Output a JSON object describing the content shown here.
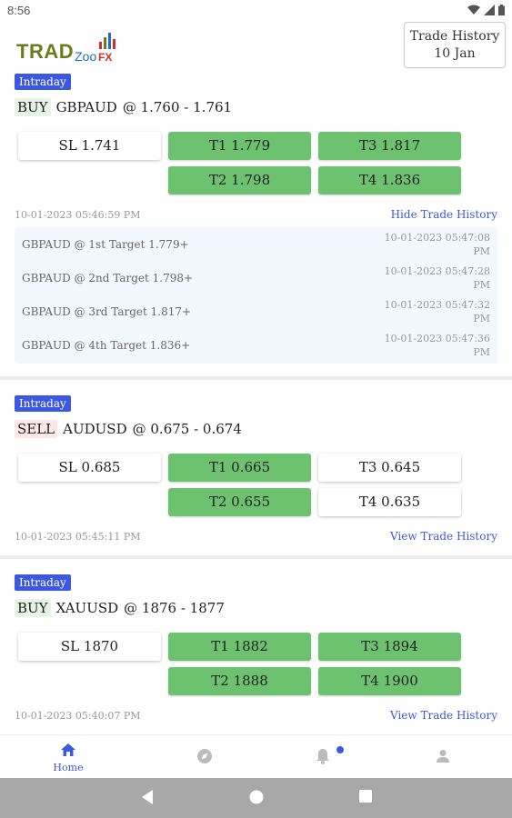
{
  "status": {
    "time": "8:56"
  },
  "header": {
    "logo": {
      "trad": "TRAD",
      "zoo": "Zoo",
      "fx": "FX"
    },
    "trade_history_line1": "Trade History",
    "trade_history_line2": "10 Jan"
  },
  "signals": [
    {
      "badge": "Intraday",
      "side": "BUY",
      "pair": "GBPAUD",
      "range": "@ 1.760 - 1.761",
      "sl": "SL  1.741",
      "t1": "T1  1.779",
      "t2": "T2  1.798",
      "t3": "T3  1.817",
      "t4": "T4  1.836",
      "timestamp": "10-01-2023 05:46:59 PM",
      "link": "Hide Trade History",
      "history": [
        {
          "text": "GBPAUD @ 1st Target 1.779+",
          "date": "10-01-2023 05:47:08",
          "time": "PM"
        },
        {
          "text": "GBPAUD @ 2nd Target 1.798+",
          "date": "10-01-2023 05:47:28",
          "time": "PM"
        },
        {
          "text": "GBPAUD @ 3rd Target 1.817+",
          "date": "10-01-2023 05:47:32",
          "time": "PM"
        },
        {
          "text": "GBPAUD @ 4th Target 1.836+",
          "date": "10-01-2023 05:47:36",
          "time": "PM"
        }
      ]
    },
    {
      "badge": "Intraday",
      "side": "SELL",
      "pair": "AUDUSD",
      "range": "@ 0.675 - 0.674",
      "sl": "SL  0.685",
      "t1": "T1  0.665",
      "t2": "T2  0.655",
      "t3": "T3  0.645",
      "t4": "T4  0.635",
      "timestamp": "10-01-2023 05:45:11 PM",
      "link": "View Trade History"
    },
    {
      "badge": "Intraday",
      "side": "BUY",
      "pair": "XAUUSD",
      "range": "@ 1876 - 1877",
      "sl": "SL  1870",
      "t1": "T1  1882",
      "t2": "T2  1888",
      "t3": "T3  1894",
      "t4": "T4  1900",
      "timestamp": "10-01-2023 05:40:07 PM",
      "link": "View Trade History"
    }
  ],
  "bottom_nav": {
    "home": "Home"
  },
  "colors": {
    "accent": "#3d58e0",
    "hit": "#6cc26f",
    "panel": "#f3f8fe"
  },
  "icons": [
    "home-icon",
    "compass-icon",
    "bell-icon",
    "person-icon",
    "wifi-icon",
    "signal-icon",
    "battery-icon",
    "back-icon",
    "home-circle-icon",
    "recents-icon"
  ]
}
